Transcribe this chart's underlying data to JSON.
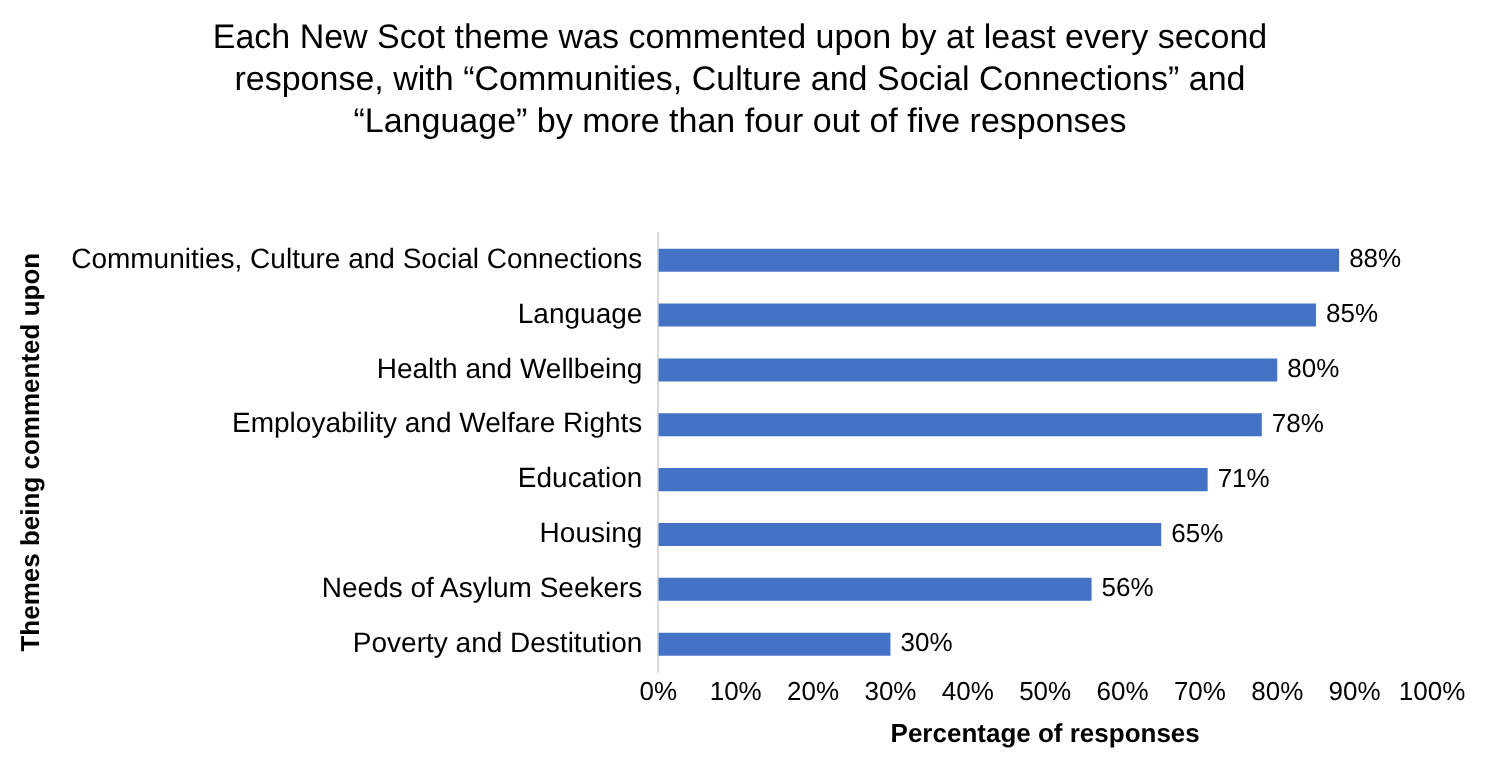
{
  "chart_data": {
    "type": "bar",
    "orientation": "horizontal",
    "title": "Each New Scot theme was commented upon by at least every second response, with “Communities, Culture and Social Connections” and “Language” by more than four out of five responses",
    "xlabel": "Percentage of responses",
    "ylabel": "Themes being commented upon",
    "categories": [
      "Communities, Culture and Social Connections",
      "Language",
      "Health and Wellbeing",
      "Employability and Welfare Rights",
      "Education",
      "Housing",
      "Needs of Asylum Seekers",
      "Poverty and Destitution"
    ],
    "values": [
      88,
      85,
      80,
      78,
      71,
      65,
      56,
      30
    ],
    "value_labels": [
      "88%",
      "85%",
      "80%",
      "78%",
      "71%",
      "65%",
      "56%",
      "30%"
    ],
    "color": "#4472c4",
    "xlim": [
      0,
      100
    ],
    "xticks": [
      {
        "value": 0,
        "label": "0%"
      },
      {
        "value": 10,
        "label": "10%"
      },
      {
        "value": 20,
        "label": "20%"
      },
      {
        "value": 30,
        "label": "30%"
      },
      {
        "value": 40,
        "label": "40%"
      },
      {
        "value": 50,
        "label": "50%"
      },
      {
        "value": 60,
        "label": "60%"
      },
      {
        "value": 70,
        "label": "70%"
      },
      {
        "value": 80,
        "label": "80%"
      },
      {
        "value": 90,
        "label": "90%"
      },
      {
        "value": 100,
        "label": "100%"
      }
    ],
    "grid": false,
    "legend": false
  }
}
